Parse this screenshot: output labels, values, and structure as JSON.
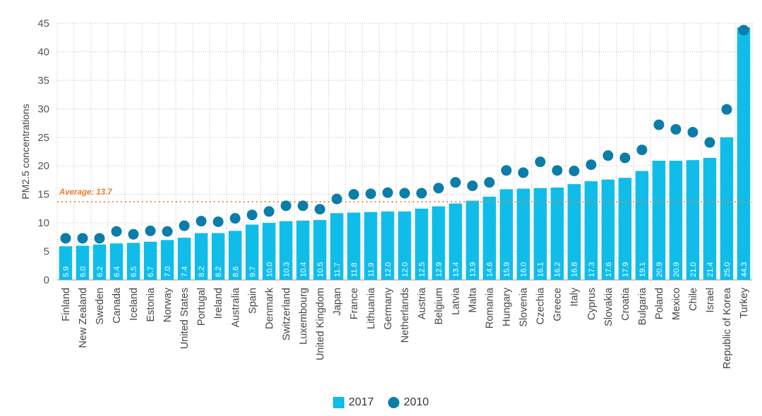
{
  "chart_data": {
    "type": "bar",
    "ylabel": "PM2.5 concentrations",
    "ylim": [
      0,
      45
    ],
    "yticks": [
      0,
      5,
      10,
      15,
      20,
      25,
      30,
      35,
      40,
      45
    ],
    "grid": true,
    "average": {
      "label": "Average: 13.7",
      "value": 13.7
    },
    "colors": {
      "bar": "#10bde9",
      "dot": "#0a7ea8",
      "average": "#f07d2c",
      "grid": "#bfbfbf"
    },
    "categories": [
      "Finland",
      "New Zealand",
      "Sweden",
      "Canada",
      "Iceland",
      "Estonia",
      "Norway",
      "United States",
      "Portugal",
      "Ireland",
      "Australia",
      "Spain",
      "Denmark",
      "Switzerland",
      "Luxembourg",
      "United Kingdom",
      "Japan",
      "France",
      "Lithuania",
      "Germany",
      "Netherlands",
      "Austria",
      "Belgium",
      "Latvia",
      "Malta",
      "Romania",
      "Hungary",
      "Slovenia",
      "Czechia",
      "Greece",
      "Italy",
      "Cyprus",
      "Slovakia",
      "Croatia",
      "Bulgaria",
      "Poland",
      "Mexico",
      "Chile",
      "Israel",
      "Republic of Korea",
      "Turkey"
    ],
    "series": [
      {
        "name": "2017",
        "type": "bar",
        "values": [
          5.9,
          6.0,
          6.2,
          6.4,
          6.5,
          6.7,
          7.0,
          7.4,
          8.2,
          8.2,
          8.6,
          9.7,
          10.0,
          10.3,
          10.4,
          10.5,
          11.7,
          11.8,
          11.9,
          12.0,
          12.0,
          12.5,
          12.9,
          13.4,
          13.9,
          14.6,
          15.9,
          16.0,
          16.1,
          16.2,
          16.8,
          17.3,
          17.6,
          17.9,
          19.1,
          20.9,
          20.9,
          21.0,
          21.4,
          25.0,
          44.3
        ],
        "labels": [
          "5.9",
          "6.0",
          "6.2",
          "6.4",
          "6.5",
          "6.7",
          "7.0",
          "7.4",
          "8.2",
          "8.2",
          "8.6",
          "9.7",
          "10.0",
          "10.3",
          "10.4",
          "10.5",
          "11.7",
          "11.8",
          "11.9",
          "12.0",
          "12.0",
          "12.5",
          "12.9",
          "13.4",
          "13.9",
          "14.6",
          "15.9",
          "16.0",
          "16.1",
          "16.2",
          "16.8",
          "17.3",
          "17.6",
          "17.9",
          "19.1",
          "20.9",
          "20.9",
          "21.0",
          "21.4",
          "25.0",
          "44.3"
        ]
      },
      {
        "name": "2010",
        "type": "scatter",
        "values": [
          7.3,
          7.3,
          7.3,
          8.5,
          8.0,
          8.6,
          8.5,
          9.5,
          10.3,
          10.2,
          10.8,
          11.4,
          12.0,
          13.0,
          13.0,
          12.4,
          14.2,
          15.0,
          15.1,
          15.3,
          15.2,
          15.2,
          16.1,
          17.1,
          16.5,
          17.1,
          19.2,
          18.8,
          20.7,
          19.2,
          19.1,
          20.2,
          21.8,
          21.4,
          22.8,
          27.2,
          26.4,
          25.9,
          24.1,
          29.9,
          43.8
        ]
      }
    ]
  }
}
